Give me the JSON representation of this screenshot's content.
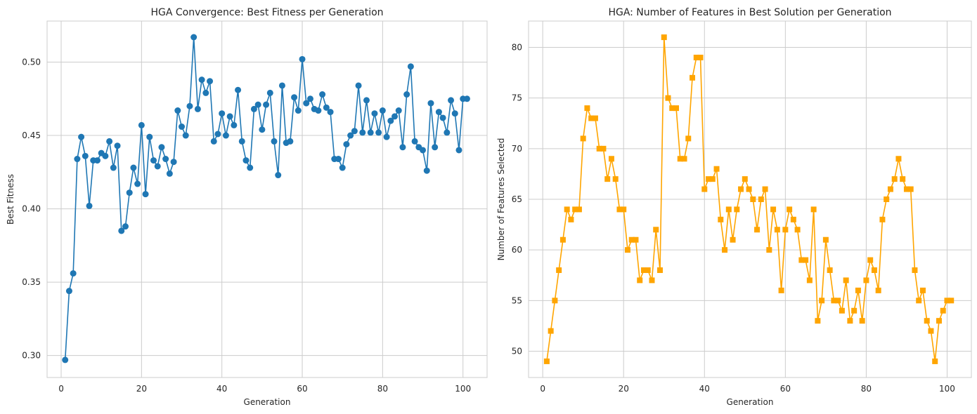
{
  "chart_data": [
    {
      "type": "line",
      "title": "HGA Convergence: Best Fitness per Generation",
      "xlabel": "Generation",
      "ylabel": "Best Fitness",
      "xlim": [
        -3.5,
        106
      ],
      "ylim": [
        0.285,
        0.528
      ],
      "xticks": [
        0,
        20,
        40,
        60,
        80,
        100
      ],
      "xtick_labels": [
        "0",
        "20",
        "40",
        "60",
        "80",
        "100"
      ],
      "yticks": [
        0.3,
        0.35,
        0.4,
        0.45,
        0.5
      ],
      "ytick_labels": [
        "0.30",
        "0.35",
        "0.40",
        "0.45",
        "0.50"
      ],
      "grid": true,
      "marker": "circle",
      "color": "#1f77b4",
      "series": [
        {
          "x": [
            1,
            2,
            3,
            4,
            5,
            6,
            7,
            8,
            9,
            10,
            11,
            12,
            13,
            14,
            15,
            16,
            17,
            18,
            19,
            20,
            21,
            22,
            23,
            24,
            25,
            26,
            27,
            28,
            29,
            30,
            31,
            32,
            33,
            34,
            35,
            36,
            37,
            38,
            39,
            40,
            41,
            42,
            43,
            44,
            45,
            46,
            47,
            48,
            49,
            50,
            51,
            52,
            53,
            54,
            55,
            56,
            57,
            58,
            59,
            60,
            61,
            62,
            63,
            64,
            65,
            66,
            67,
            68,
            69,
            70,
            71,
            72,
            73,
            74,
            75,
            76,
            77,
            78,
            79,
            80,
            81,
            82,
            83,
            84,
            85,
            86,
            87,
            88,
            89,
            90,
            91,
            92,
            93,
            94,
            95,
            96,
            97,
            98,
            99,
            100,
            101
          ],
          "values": [
            0.297,
            0.344,
            0.356,
            0.434,
            0.449,
            0.436,
            0.402,
            0.433,
            0.433,
            0.438,
            0.436,
            0.446,
            0.428,
            0.443,
            0.385,
            0.388,
            0.411,
            0.428,
            0.417,
            0.457,
            0.41,
            0.449,
            0.433,
            0.429,
            0.442,
            0.434,
            0.424,
            0.432,
            0.467,
            0.456,
            0.45,
            0.47,
            0.517,
            0.468,
            0.488,
            0.479,
            0.487,
            0.446,
            0.451,
            0.465,
            0.45,
            0.463,
            0.457,
            0.481,
            0.446,
            0.433,
            0.428,
            0.468,
            0.471,
            0.454,
            0.471,
            0.479,
            0.446,
            0.423,
            0.484,
            0.445,
            0.446,
            0.476,
            0.467,
            0.502,
            0.472,
            0.475,
            0.468,
            0.467,
            0.478,
            0.469,
            0.466,
            0.434,
            0.434,
            0.428,
            0.444,
            0.45,
            0.453,
            0.484,
            0.452,
            0.474,
            0.452,
            0.465,
            0.452,
            0.467,
            0.449,
            0.46,
            0.463,
            0.467,
            0.442,
            0.478,
            0.497,
            0.446,
            0.442,
            0.44,
            0.426,
            0.472,
            0.442,
            0.466,
            0.462,
            0.452,
            0.474,
            0.465,
            0.44,
            0.475,
            0.475
          ]
        }
      ]
    },
    {
      "type": "line",
      "title": "HGA: Number of Features in Best Solution per Generation",
      "xlabel": "Generation",
      "ylabel": "Number of Features Selected",
      "xlim": [
        -3.5,
        106
      ],
      "ylim": [
        47.4,
        82.6
      ],
      "xticks": [
        0,
        20,
        40,
        60,
        80,
        100
      ],
      "xtick_labels": [
        "0",
        "20",
        "40",
        "60",
        "80",
        "100"
      ],
      "yticks": [
        50,
        55,
        60,
        65,
        70,
        75,
        80
      ],
      "ytick_labels": [
        "50",
        "55",
        "60",
        "65",
        "70",
        "75",
        "80"
      ],
      "grid": true,
      "marker": "square",
      "color": "#ffa500",
      "series": [
        {
          "x": [
            1,
            2,
            3,
            4,
            5,
            6,
            7,
            8,
            9,
            10,
            11,
            12,
            13,
            14,
            15,
            16,
            17,
            18,
            19,
            20,
            21,
            22,
            23,
            24,
            25,
            26,
            27,
            28,
            29,
            30,
            31,
            32,
            33,
            34,
            35,
            36,
            37,
            38,
            39,
            40,
            41,
            42,
            43,
            44,
            45,
            46,
            47,
            48,
            49,
            50,
            51,
            52,
            53,
            54,
            55,
            56,
            57,
            58,
            59,
            60,
            61,
            62,
            63,
            64,
            65,
            66,
            67,
            68,
            69,
            70,
            71,
            72,
            73,
            74,
            75,
            76,
            77,
            78,
            79,
            80,
            81,
            82,
            83,
            84,
            85,
            86,
            87,
            88,
            89,
            90,
            91,
            92,
            93,
            94,
            95,
            96,
            97,
            98,
            99,
            100,
            101
          ],
          "values": [
            49,
            52,
            55,
            58,
            61,
            64,
            63,
            64,
            64,
            71,
            74,
            73,
            73,
            70,
            70,
            67,
            69,
            67,
            64,
            64,
            60,
            61,
            61,
            57,
            58,
            58,
            57,
            62,
            58,
            81,
            75,
            74,
            74,
            69,
            69,
            71,
            77,
            79,
            79,
            66,
            67,
            67,
            68,
            63,
            60,
            64,
            61,
            64,
            66,
            67,
            66,
            65,
            62,
            65,
            66,
            60,
            64,
            62,
            56,
            62,
            64,
            63,
            62,
            59,
            59,
            57,
            64,
            53,
            55,
            61,
            58,
            55,
            55,
            54,
            57,
            53,
            54,
            56,
            53,
            57,
            59,
            58,
            56,
            63,
            65,
            66,
            67,
            69,
            67,
            66,
            66,
            58,
            55,
            56,
            53,
            52,
            49,
            53,
            54,
            55,
            55
          ]
        }
      ]
    }
  ]
}
